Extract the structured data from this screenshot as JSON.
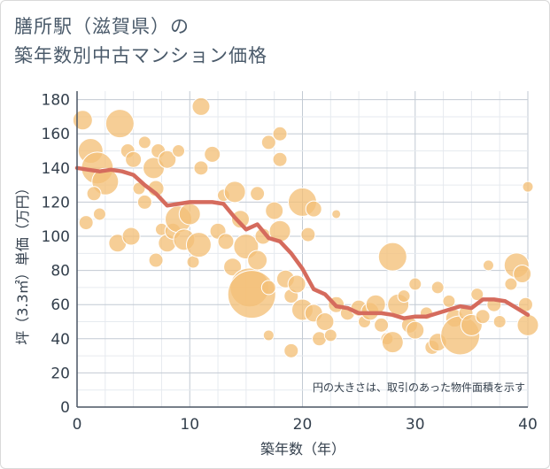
{
  "title": {
    "line1": "膳所駅（滋賀県）の",
    "line2": "築年数別中古マンション価格"
  },
  "colors": {
    "bubble": "#f3c079",
    "bubble_stroke": "#ffffff",
    "line": "#d56b5d",
    "grid_major": "#c2cad3",
    "grid_minor": "#e6eaef",
    "axis_text": "#333f4c"
  },
  "chart_data": {
    "type": "scatter",
    "title": "膳所駅（滋賀県）の築年数別中古マンション価格",
    "xlabel": "築年数（年）",
    "ylabel": "坪（3.3㎡）単価（万円）",
    "xlim": [
      0,
      40
    ],
    "ylim": [
      0,
      185
    ],
    "xticks": [
      0,
      10,
      20,
      30,
      40
    ],
    "yticks": [
      0,
      20,
      40,
      60,
      80,
      100,
      120,
      140,
      160,
      180
    ],
    "grid": true,
    "note": "円の大きさは、取引のあった物件面積を示す",
    "trend_line": {
      "x": [
        0,
        1,
        2,
        3,
        4,
        5,
        6,
        7,
        8,
        9,
        10,
        11,
        12,
        13,
        14,
        15,
        16,
        17,
        18,
        19,
        20,
        21,
        22,
        23,
        24,
        25,
        26,
        27,
        28,
        29,
        30,
        31,
        32,
        33,
        34,
        35,
        36,
        37,
        38,
        39,
        40
      ],
      "y": [
        140,
        139,
        138,
        139,
        138,
        136,
        130,
        125,
        118,
        119,
        120,
        120,
        120,
        119,
        111,
        104,
        107,
        99,
        97,
        90,
        81,
        69,
        66,
        59,
        58,
        55,
        55,
        55,
        54,
        52,
        53,
        53,
        55,
        57,
        59,
        58,
        63,
        63,
        62,
        58,
        54
      ]
    },
    "points": [
      {
        "x": 0.5,
        "y": 168,
        "r": 11
      },
      {
        "x": 1.2,
        "y": 150,
        "r": 14
      },
      {
        "x": 1.8,
        "y": 140,
        "r": 18
      },
      {
        "x": 2.5,
        "y": 132,
        "r": 15
      },
      {
        "x": 3.8,
        "y": 166,
        "r": 16
      },
      {
        "x": 4.5,
        "y": 150,
        "r": 8
      },
      {
        "x": 5.0,
        "y": 145,
        "r": 9
      },
      {
        "x": 6.0,
        "y": 155,
        "r": 7
      },
      {
        "x": 6.8,
        "y": 140,
        "r": 12
      },
      {
        "x": 7.2,
        "y": 150,
        "r": 8
      },
      {
        "x": 8.0,
        "y": 145,
        "r": 10
      },
      {
        "x": 9.0,
        "y": 150,
        "r": 7
      },
      {
        "x": 1.5,
        "y": 125,
        "r": 8
      },
      {
        "x": 0.8,
        "y": 108,
        "r": 8
      },
      {
        "x": 2.0,
        "y": 113,
        "r": 7
      },
      {
        "x": 3.6,
        "y": 96,
        "r": 10
      },
      {
        "x": 4.8,
        "y": 100,
        "r": 10
      },
      {
        "x": 5.5,
        "y": 128,
        "r": 7
      },
      {
        "x": 6.0,
        "y": 120,
        "r": 8
      },
      {
        "x": 7.0,
        "y": 128,
        "r": 9
      },
      {
        "x": 7.5,
        "y": 104,
        "r": 7
      },
      {
        "x": 8.0,
        "y": 96,
        "r": 10
      },
      {
        "x": 8.5,
        "y": 103,
        "r": 9
      },
      {
        "x": 9.0,
        "y": 110,
        "r": 15
      },
      {
        "x": 9.5,
        "y": 98,
        "r": 12
      },
      {
        "x": 10.0,
        "y": 113,
        "r": 12
      },
      {
        "x": 10.3,
        "y": 85,
        "r": 7
      },
      {
        "x": 10.8,
        "y": 95,
        "r": 14
      },
      {
        "x": 7.0,
        "y": 86,
        "r": 8
      },
      {
        "x": 11.0,
        "y": 176,
        "r": 10
      },
      {
        "x": 11.0,
        "y": 140,
        "r": 8
      },
      {
        "x": 12.0,
        "y": 148,
        "r": 9
      },
      {
        "x": 12.5,
        "y": 103,
        "r": 9
      },
      {
        "x": 13.0,
        "y": 124,
        "r": 7
      },
      {
        "x": 13.2,
        "y": 97,
        "r": 9
      },
      {
        "x": 13.8,
        "y": 82,
        "r": 10
      },
      {
        "x": 14.0,
        "y": 126,
        "r": 12
      },
      {
        "x": 14.5,
        "y": 110,
        "r": 10
      },
      {
        "x": 15.0,
        "y": 94,
        "r": 14
      },
      {
        "x": 15.3,
        "y": 70,
        "r": 22
      },
      {
        "x": 15.5,
        "y": 66,
        "r": 27
      },
      {
        "x": 16.0,
        "y": 125,
        "r": 8
      },
      {
        "x": 16.0,
        "y": 86,
        "r": 11
      },
      {
        "x": 16.5,
        "y": 100,
        "r": 9
      },
      {
        "x": 17.0,
        "y": 70,
        "r": 8
      },
      {
        "x": 17.0,
        "y": 42,
        "r": 6
      },
      {
        "x": 17.0,
        "y": 155,
        "r": 8
      },
      {
        "x": 17.5,
        "y": 115,
        "r": 10
      },
      {
        "x": 18.0,
        "y": 145,
        "r": 8
      },
      {
        "x": 18.0,
        "y": 103,
        "r": 12
      },
      {
        "x": 18.0,
        "y": 160,
        "r": 8
      },
      {
        "x": 18.5,
        "y": 75,
        "r": 10
      },
      {
        "x": 19.0,
        "y": 65,
        "r": 8
      },
      {
        "x": 19.0,
        "y": 33,
        "r": 8
      },
      {
        "x": 19.5,
        "y": 72,
        "r": 10
      },
      {
        "x": 20.0,
        "y": 120,
        "r": 16
      },
      {
        "x": 20.0,
        "y": 57,
        "r": 12
      },
      {
        "x": 20.5,
        "y": 101,
        "r": 8
      },
      {
        "x": 21.0,
        "y": 116,
        "r": 9
      },
      {
        "x": 21.0,
        "y": 55,
        "r": 10
      },
      {
        "x": 21.5,
        "y": 40,
        "r": 8
      },
      {
        "x": 22.0,
        "y": 50,
        "r": 10
      },
      {
        "x": 22.5,
        "y": 42,
        "r": 7
      },
      {
        "x": 23.0,
        "y": 60,
        "r": 9
      },
      {
        "x": 23.0,
        "y": 113,
        "r": 5
      },
      {
        "x": 24.0,
        "y": 55,
        "r": 8
      },
      {
        "x": 25.0,
        "y": 58,
        "r": 9
      },
      {
        "x": 25.5,
        "y": 50,
        "r": 7
      },
      {
        "x": 26.0,
        "y": 56,
        "r": 10
      },
      {
        "x": 26.5,
        "y": 60,
        "r": 11
      },
      {
        "x": 27.0,
        "y": 48,
        "r": 8
      },
      {
        "x": 27.5,
        "y": 40,
        "r": 7
      },
      {
        "x": 28.0,
        "y": 88,
        "r": 16
      },
      {
        "x": 28.0,
        "y": 38,
        "r": 12
      },
      {
        "x": 28.5,
        "y": 60,
        "r": 12
      },
      {
        "x": 29.0,
        "y": 65,
        "r": 7
      },
      {
        "x": 29.5,
        "y": 48,
        "r": 9
      },
      {
        "x": 30.0,
        "y": 45,
        "r": 10
      },
      {
        "x": 30.0,
        "y": 72,
        "r": 7
      },
      {
        "x": 31.0,
        "y": 55,
        "r": 7
      },
      {
        "x": 31.5,
        "y": 35,
        "r": 8
      },
      {
        "x": 32.0,
        "y": 70,
        "r": 7
      },
      {
        "x": 32.0,
        "y": 38,
        "r": 10
      },
      {
        "x": 33.0,
        "y": 62,
        "r": 7
      },
      {
        "x": 33.5,
        "y": 52,
        "r": 10
      },
      {
        "x": 34.0,
        "y": 42,
        "r": 22
      },
      {
        "x": 34.5,
        "y": 55,
        "r": 8
      },
      {
        "x": 35.0,
        "y": 48,
        "r": 12
      },
      {
        "x": 35.5,
        "y": 66,
        "r": 7
      },
      {
        "x": 36.0,
        "y": 53,
        "r": 8
      },
      {
        "x": 36.5,
        "y": 83,
        "r": 6
      },
      {
        "x": 37.0,
        "y": 60,
        "r": 8
      },
      {
        "x": 37.5,
        "y": 50,
        "r": 7
      },
      {
        "x": 38.5,
        "y": 72,
        "r": 7
      },
      {
        "x": 39.0,
        "y": 83,
        "r": 14
      },
      {
        "x": 39.5,
        "y": 78,
        "r": 10
      },
      {
        "x": 40.0,
        "y": 129,
        "r": 6
      },
      {
        "x": 40.0,
        "y": 48,
        "r": 12
      },
      {
        "x": 39.8,
        "y": 60,
        "r": 8
      }
    ]
  }
}
